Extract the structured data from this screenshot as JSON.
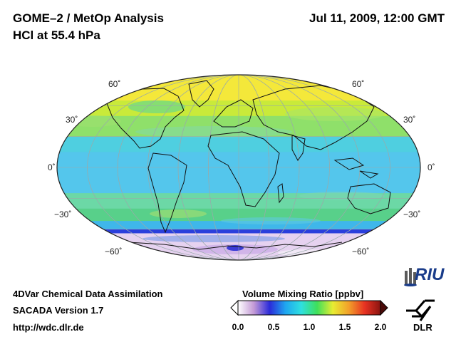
{
  "header": {
    "title_line1": "GOME–2 / MetOp Analysis",
    "title_line2": "HCl at 55.4 hPa",
    "datetime": "Jul 11, 2009, 12:00 GMT"
  },
  "map": {
    "projection": "Mollweide (Hammer-Aitoff style)",
    "lat_labels_left": [
      "60˚",
      "30˚",
      "0˚",
      "−30˚",
      "−60˚"
    ],
    "lat_labels_right": [
      "60˚",
      "30˚",
      "0˚",
      "−30˚",
      "−60˚"
    ],
    "field_bands": [
      {
        "lat_from": 90,
        "lat_to": 65,
        "color": "#f4e83a"
      },
      {
        "lat_from": 65,
        "lat_to": 50,
        "color": "#c9ea3a"
      },
      {
        "lat_from": 50,
        "lat_to": 30,
        "color": "#8fe06a"
      },
      {
        "lat_from": 30,
        "lat_to": 15,
        "color": "#4fcfe0"
      },
      {
        "lat_from": 15,
        "lat_to": -25,
        "color": "#54c6ec"
      },
      {
        "lat_from": -25,
        "lat_to": -40,
        "color": "#6cd8a6"
      },
      {
        "lat_from": -40,
        "lat_to": -52,
        "color": "#58d08a"
      },
      {
        "lat_from": -52,
        "lat_to": -60,
        "color": "#3fb7ea"
      },
      {
        "lat_from": -60,
        "lat_to": -64,
        "color": "#2a3fdc"
      },
      {
        "lat_from": -64,
        "lat_to": -90,
        "color": "#e6d2f0"
      }
    ]
  },
  "colorbar": {
    "title": "Volume Mixing Ratio [ppbv]",
    "ticks": [
      "0.0",
      "0.5",
      "1.0",
      "1.5",
      "2.0"
    ],
    "min": 0.0,
    "max": 2.0,
    "stops": [
      "#ffffff",
      "#c49ad6",
      "#2b2bd9",
      "#1fa6f0",
      "#2fe0e0",
      "#3fe05a",
      "#e8ec32",
      "#f2a02a",
      "#e83222",
      "#8a1410"
    ]
  },
  "footer": {
    "line1": "4DVar Chemical Data Assimilation",
    "line2": "SACADA Version 1.7",
    "line3": "http://wdc.dlr.de"
  },
  "logos": {
    "riu_text": "RIU",
    "dlr_text": "DLR"
  }
}
